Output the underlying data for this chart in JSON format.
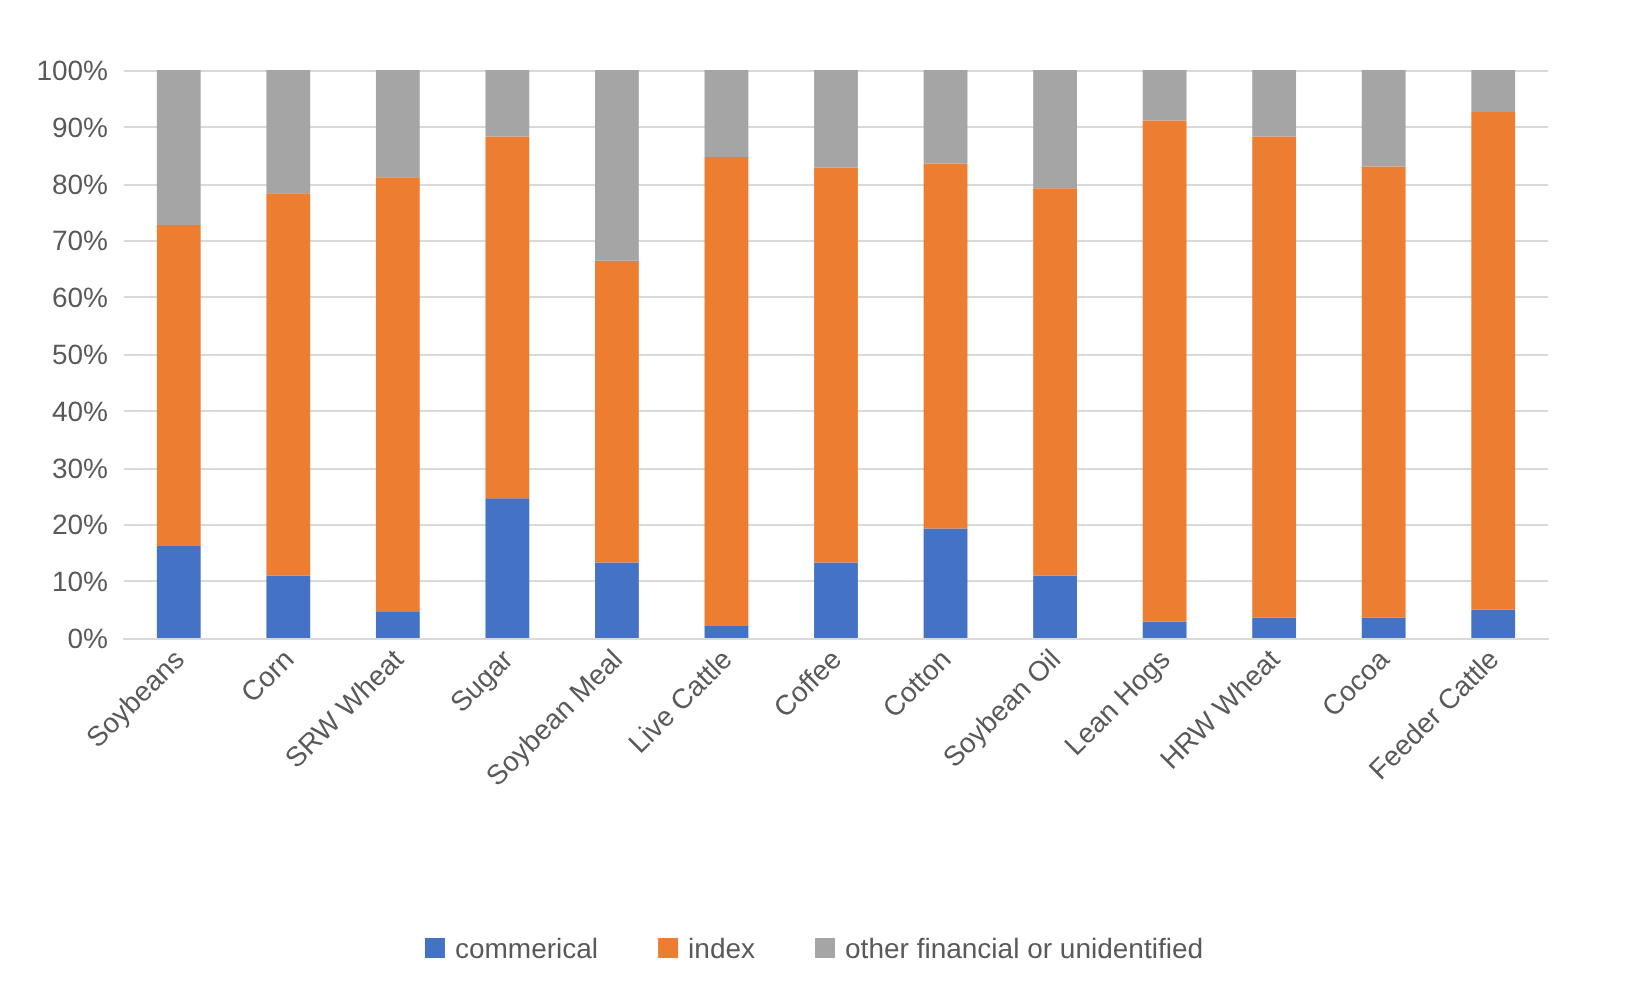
{
  "chart_data": {
    "type": "bar",
    "stacked": true,
    "categories": [
      "Soybeans",
      "Corn",
      "SRW Wheat",
      "Sugar",
      "Soybean Meal",
      "Live Cattle",
      "Coffee",
      "Cotton",
      "Soybean Oil",
      "Lean Hogs",
      "HRW Wheat",
      "Cocoa",
      "Feeder Cattle"
    ],
    "series": [
      {
        "name": "commerical",
        "color": "#4472c4",
        "values": [
          16.2,
          11.0,
          4.7,
          24.6,
          13.3,
          2.1,
          13.3,
          19.3,
          11.0,
          2.9,
          3.6,
          3.6,
          5.0
        ]
      },
      {
        "name": "index",
        "color": "#ed7d31",
        "values": [
          56.5,
          67.3,
          76.4,
          63.7,
          53.1,
          82.6,
          69.5,
          64.2,
          68.2,
          88.2,
          84.7,
          79.4,
          87.6
        ]
      },
      {
        "name": "other financial or unidentified",
        "color": "#a5a5a5",
        "values": [
          27.3,
          21.7,
          18.9,
          11.7,
          33.6,
          15.3,
          17.2,
          16.5,
          20.8,
          8.9,
          11.7,
          17.0,
          7.4
        ]
      }
    ],
    "ylim": [
      0,
      100
    ],
    "yticks": [
      {
        "value": 0,
        "label": "0%"
      },
      {
        "value": 10,
        "label": "10%"
      },
      {
        "value": 20,
        "label": "20%"
      },
      {
        "value": 30,
        "label": "30%"
      },
      {
        "value": 40,
        "label": "40%"
      },
      {
        "value": 50,
        "label": "50%"
      },
      {
        "value": 60,
        "label": "60%"
      },
      {
        "value": 70,
        "label": "70%"
      },
      {
        "value": 80,
        "label": "80%"
      },
      {
        "value": 90,
        "label": "90%"
      },
      {
        "value": 100,
        "label": "100%"
      }
    ],
    "grid": "y",
    "legend": "bottom"
  }
}
